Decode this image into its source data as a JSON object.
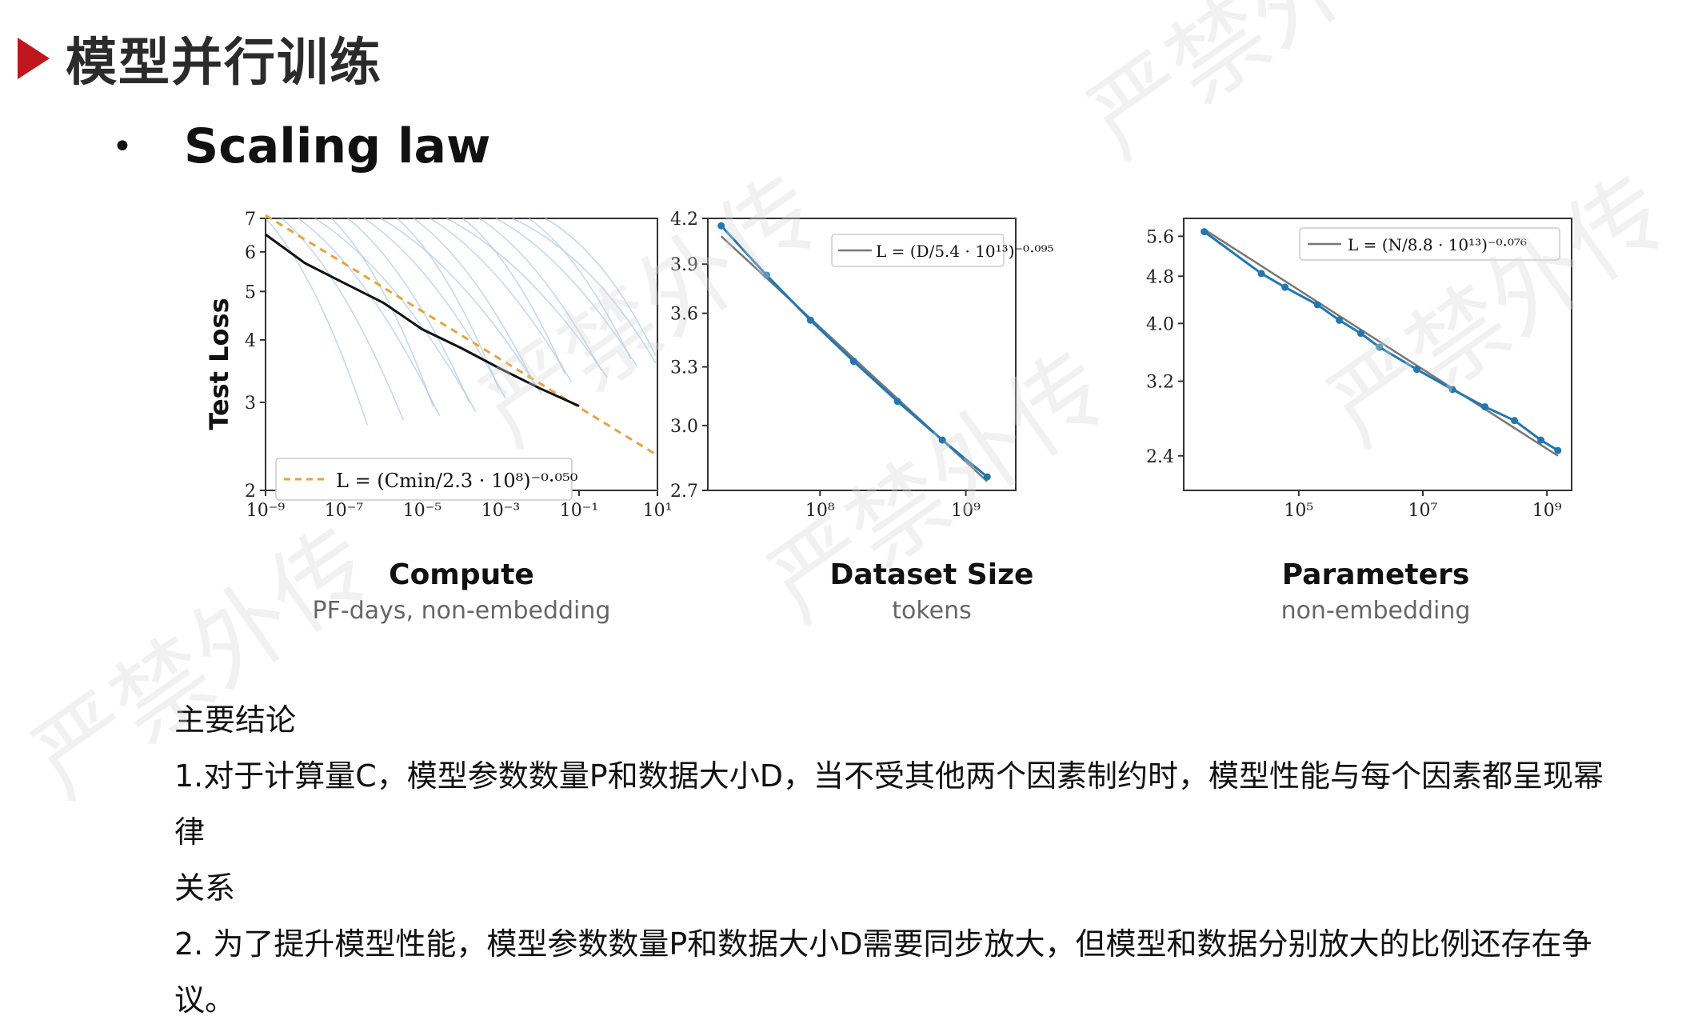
{
  "slide": {
    "title": "模型并行训练",
    "bullet": "Scaling law"
  },
  "figure": {
    "panels": [
      {
        "xlabel": "Compute",
        "xsublabel": "PF-days, non-embedding",
        "ylabel": "Test Loss",
        "y_ticks": [
          "2",
          "3",
          "4",
          "5",
          "6",
          "7"
        ],
        "x_ticks": [
          "10⁻⁹",
          "10⁻⁷",
          "10⁻⁵",
          "10⁻³",
          "10⁻¹",
          "10¹"
        ],
        "legend": "L = (Cmin/2.3 · 10⁸)⁻⁰·⁰⁵⁰"
      },
      {
        "xlabel": "Dataset Size",
        "xsublabel": "tokens",
        "y_ticks": [
          "2.7",
          "3.0",
          "3.3",
          "3.6",
          "3.9",
          "4.2"
        ],
        "x_ticks": [
          "10⁸",
          "10⁹"
        ],
        "legend": "L = (D/5.4 · 10¹³)⁻⁰·⁰⁹⁵"
      },
      {
        "xlabel": "Parameters",
        "xsublabel": "non-embedding",
        "y_ticks": [
          "2.4",
          "3.2",
          "4.0",
          "4.8",
          "5.6"
        ],
        "x_ticks": [
          "10⁵",
          "10⁷",
          "10⁹"
        ],
        "legend": "L = (N/8.8 · 10¹³)⁻⁰·⁰⁷⁶"
      }
    ]
  },
  "chart_data": [
    {
      "type": "line",
      "xlabel": "Compute",
      "ylabel": "Test Loss",
      "x_scale": "log",
      "y_scale": "log",
      "xlim": [
        1e-09,
        10
      ],
      "ylim": [
        2,
        7
      ],
      "series": [
        {
          "name": "Test Loss",
          "x": [
            1e-09,
            1e-08,
            1e-07,
            1e-06,
            1e-05,
            0.0001,
            0.001,
            0.01,
            0.1
          ],
          "y": [
            6.5,
            5.7,
            5.2,
            4.75,
            4.2,
            3.85,
            3.5,
            3.2,
            2.95
          ]
        },
        {
          "name": "L = (Cmin/2.3 · 10⁸)⁻⁰·⁰⁵⁰",
          "x": [
            1e-09,
            10
          ],
          "y": [
            7.1,
            2.35
          ]
        }
      ]
    },
    {
      "type": "line",
      "xlabel": "Dataset Size",
      "ylabel": "",
      "x_scale": "log",
      "y_scale": "log",
      "xlim": [
        17000000.0,
        2200000000.0
      ],
      "ylim": [
        2.7,
        4.2
      ],
      "series": [
        {
          "name": "Test Loss",
          "x": [
            21000000.0,
            43000000.0,
            86000000.0,
            170000000.0,
            340000000.0,
            690000000.0,
            1400000000.0
          ],
          "y": [
            4.15,
            3.83,
            3.56,
            3.33,
            3.12,
            2.93,
            2.76
          ]
        },
        {
          "name": "L = (D/5.4 · 10¹³)⁻⁰·⁰⁹⁵",
          "x": [
            21000000.0,
            1400000000.0
          ],
          "y": [
            4.08,
            2.74
          ]
        }
      ]
    },
    {
      "type": "line",
      "xlabel": "Parameters",
      "ylabel": "",
      "x_scale": "log",
      "y_scale": "log",
      "xlim": [
        1400.0,
        2500000000.0
      ],
      "ylim": [
        2.1,
        6.0
      ],
      "series": [
        {
          "name": "Test Loss",
          "x": [
            3000.0,
            25000.0,
            60000.0,
            200000.0,
            450000.0,
            1000000.0,
            2000000.0,
            8000000.0,
            30000000.0,
            100000000.0,
            300000000.0,
            800000000.0,
            1500000000.0
          ],
          "y": [
            5.7,
            4.85,
            4.6,
            4.3,
            4.05,
            3.85,
            3.65,
            3.35,
            3.1,
            2.9,
            2.75,
            2.55,
            2.45
          ]
        },
        {
          "name": "L = (N/8.8 · 10¹³)⁻⁰·⁰⁷⁶",
          "x": [
            3000.0,
            1500000000.0
          ],
          "y": [
            5.75,
            2.4
          ]
        }
      ]
    }
  ],
  "conclusions": {
    "heading": "主要结论",
    "item1_line1": "1.对于计算量C，模型参数数量P和数据大小D，当不受其他两个因素制约时，模型性能与每个因素都呈现幂律",
    "item1_line2": "关系",
    "item2": "2. 为了提升模型性能，模型参数数量P和数据大小D需要同步放大，但模型和数据分别放大的比例还存在争议。"
  },
  "colors": {
    "arrow": "#c0161c",
    "series": "#1f77b4",
    "fit": "#777777",
    "compute_fit": "#e8a33a",
    "compute_runs": "#a9c9e6"
  }
}
